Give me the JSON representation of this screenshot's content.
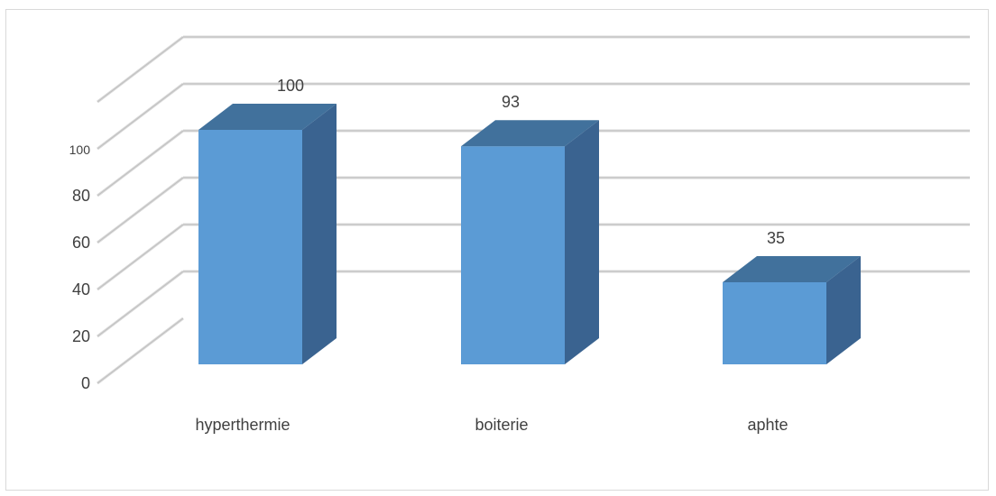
{
  "chart_data": {
    "type": "bar",
    "style": "3d-column",
    "categories": [
      "hyperthermie",
      "boiterie",
      "aphte"
    ],
    "values": [
      100,
      93,
      35
    ],
    "data_labels": [
      "100",
      "93",
      "35"
    ],
    "y_ticks": [
      "0",
      "20",
      "40",
      "60",
      "80",
      "100"
    ],
    "ylim": [
      0,
      120
    ],
    "grid": true,
    "legend": "none",
    "colors": {
      "bar_front": "#5b9bd5",
      "bar_top": "#41719c",
      "bar_side": "#3a6390",
      "gridline": "#bfbfbf",
      "text": "#404040"
    }
  }
}
